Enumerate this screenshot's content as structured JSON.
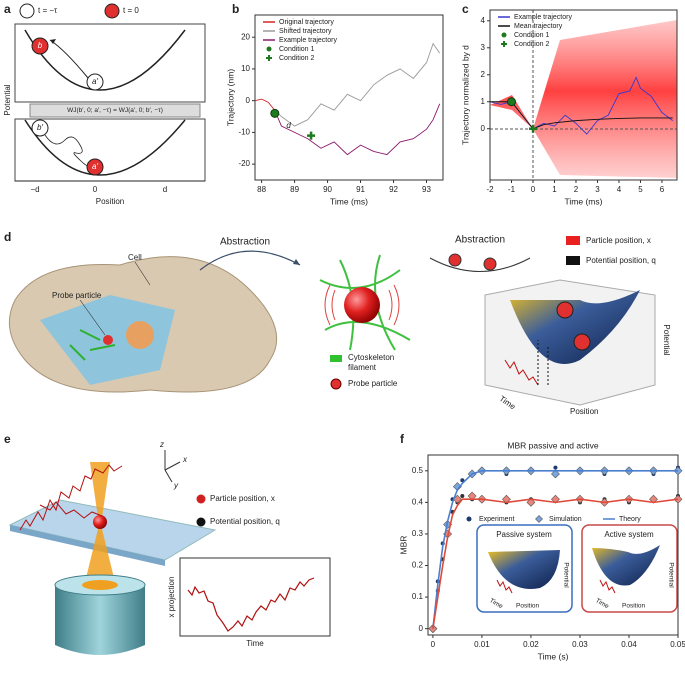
{
  "panels": [
    "a",
    "b",
    "c",
    "d",
    "e",
    "f"
  ],
  "panel_a": {
    "legend": [
      "t = −τ",
      "t = 0"
    ],
    "labels": [
      "b",
      "a′",
      "b′",
      "a′"
    ],
    "formula": "WJ(b′, 0; a′, −τ) = WJ(a′, 0; b′, −τ)",
    "ticks": [
      "−d",
      "0",
      "d"
    ],
    "xlabel": "Position",
    "ylabel": "Potential"
  },
  "panel_d": {
    "cell": "Cell",
    "probe_particle": "Probe particle",
    "abstraction": [
      "Abstraction",
      "Abstraction"
    ],
    "cytoskeleton": [
      "Cytoskeleton",
      "filament"
    ],
    "probe_particle_legend": "Probe particle",
    "legend": [
      "Particle position, x",
      "Potential position, q"
    ],
    "axes": [
      "Time",
      "Position",
      "Potential"
    ]
  },
  "panel_e": {
    "axes": [
      "z",
      "x",
      "y"
    ],
    "legend": [
      "Particle position, x",
      "Potential position, q"
    ],
    "inset_xlabel": "Time",
    "inset_ylabel": "x projection"
  },
  "panel_f": {
    "insets": [
      "Passive system",
      "Active system"
    ],
    "inset_axes": [
      "Time",
      "Position",
      "Potential"
    ]
  },
  "chart_data": [
    {
      "type": "line",
      "xlabel": "Time (ms)",
      "ylabel": "Trajectory (nm)",
      "xlim": [
        87.8,
        93.5
      ],
      "ylim": [
        -25,
        27
      ],
      "xticks": [
        88,
        89,
        90,
        91,
        92,
        93
      ],
      "yticks": [
        -20,
        -10,
        0,
        10,
        20
      ],
      "legend": "upper left",
      "annotation": "d",
      "series": [
        {
          "name": "Original trajectory",
          "color": "#d62728",
          "marker": "line",
          "x": [
            87.8,
            88.0,
            88.2,
            88.4
          ],
          "values": [
            0,
            0.5,
            -0.5,
            -3
          ]
        },
        {
          "name": "Shifted trajectory",
          "color": "#9a9a9a",
          "marker": "line",
          "x": [
            88.4,
            88.6,
            89.0,
            89.4,
            89.8,
            90.2,
            90.6,
            91.0,
            91.4,
            91.8,
            92.2,
            92.6,
            93.0,
            93.2,
            93.4
          ],
          "values": [
            -3,
            -5,
            -8,
            -6,
            -1,
            -3,
            2,
            0,
            5,
            8,
            10,
            7,
            12,
            18,
            15
          ]
        },
        {
          "name": "Example trajectory",
          "color": "#8b1a6b",
          "marker": "line",
          "x": [
            88.4,
            88.6,
            89.0,
            89.4,
            89.8,
            90.2,
            90.6,
            91.0,
            91.4,
            91.8,
            92.2,
            92.6,
            93.0,
            93.2,
            93.4
          ],
          "values": [
            -3,
            -8,
            -10,
            -12,
            -15,
            -13,
            -17,
            -14,
            -16,
            -17,
            -13,
            -12,
            -9,
            -6,
            -1
          ]
        },
        {
          "name": "Condition 1",
          "color": "#1e7a1e",
          "marker": "circle",
          "x": [
            88.4
          ],
          "values": [
            -4
          ]
        },
        {
          "name": "Condition 2",
          "color": "#1e7a1e",
          "marker": "plus",
          "x": [
            89.5
          ],
          "values": [
            -11
          ]
        }
      ]
    },
    {
      "type": "line",
      "xlabel": "Time (ms)",
      "ylabel": "Trajectory normalized by d",
      "xlim": [
        -2,
        6.7
      ],
      "ylim": [
        -1.9,
        4.4
      ],
      "xticks": [
        -2,
        -1,
        0,
        1,
        2,
        3,
        4,
        5,
        6
      ],
      "yticks": [
        0,
        1,
        2,
        3,
        4
      ],
      "legend": "upper left",
      "series": [
        {
          "name": "Example trajectory",
          "color": "#3838d0",
          "marker": "line",
          "x": [
            -2,
            -1.5,
            -1,
            -0.5,
            0,
            0.5,
            1,
            1.5,
            2,
            2.5,
            3,
            3.5,
            4,
            4.5,
            4.8,
            5,
            5.5,
            6,
            6.5
          ],
          "values": [
            1.0,
            0.9,
            1.0,
            0.5,
            0,
            0.2,
            0.1,
            0.5,
            0.2,
            -0.2,
            0.3,
            0.5,
            1.3,
            1.4,
            1.9,
            1.5,
            1.2,
            0.6,
            0.3
          ]
        },
        {
          "name": "Mean trajectory",
          "color": "#111111",
          "marker": "line",
          "x": [
            -2,
            -1,
            -0.5,
            0,
            0.5,
            1,
            2,
            3,
            4,
            5,
            6,
            6.5
          ],
          "values": [
            1,
            1,
            0.5,
            0,
            0.15,
            0.22,
            0.3,
            0.35,
            0.38,
            0.4,
            0.4,
            0.4
          ]
        },
        {
          "name": "Condition 1",
          "color": "#1e7a1e",
          "marker": "circle",
          "x": [
            -1
          ],
          "values": [
            1
          ]
        },
        {
          "name": "Condition 2",
          "color": "#1e7a1e",
          "marker": "plus",
          "x": [
            0
          ],
          "values": [
            0
          ]
        }
      ]
    },
    {
      "type": "line",
      "title": "MBR passive and active",
      "xlabel": "Time (s)",
      "ylabel": "MBR",
      "xlim": [
        -0.001,
        0.05
      ],
      "ylim": [
        -0.02,
        0.55
      ],
      "xticks": [
        0,
        0.01,
        0.02,
        0.03,
        0.04,
        0.05
      ],
      "yticks": [
        0,
        0.1,
        0.2,
        0.3,
        0.4,
        0.5
      ],
      "legend": "lower center",
      "x": [
        0,
        0.001,
        0.002,
        0.003,
        0.004,
        0.005,
        0.006,
        0.008,
        0.01,
        0.015,
        0.02,
        0.025,
        0.03,
        0.035,
        0.04,
        0.045,
        0.05
      ],
      "series": [
        {
          "name": "Experiment",
          "color": "#1f3a6e",
          "marker": "points",
          "values": [
            0.001,
            0.15,
            0.27,
            0.33,
            0.41,
            0.45,
            0.47,
            0.49,
            0.5,
            0.49,
            0.5,
            0.51,
            0.5,
            0.49,
            0.5,
            0.49,
            0.51
          ]
        },
        {
          "name": "Experiment",
          "color": "#333333",
          "marker": "points",
          "values": [
            0.005,
            0.12,
            0.22,
            0.3,
            0.37,
            0.4,
            0.42,
            0.41,
            0.41,
            0.4,
            0.41,
            0.41,
            0.4,
            0.41,
            0.4,
            0.41,
            0.42
          ]
        },
        {
          "name": "Simulation",
          "color": "#7aa6dd",
          "marker": "diamond",
          "values": [
            0,
            null,
            null,
            0.33,
            null,
            0.45,
            null,
            0.49,
            0.5,
            0.5,
            0.5,
            0.49,
            0.5,
            0.5,
            0.5,
            0.5,
            0.5
          ]
        },
        {
          "name": "Simulation",
          "color": "#e8857a",
          "marker": "diamond",
          "values": [
            0,
            null,
            null,
            0.3,
            null,
            0.41,
            null,
            0.42,
            0.41,
            0.41,
            0.4,
            0.41,
            0.41,
            0.4,
            0.41,
            0.41,
            0.41
          ]
        },
        {
          "name": "Theory",
          "color": "#4a7fd0",
          "marker": "line",
          "values": [
            0,
            0.14,
            0.26,
            0.34,
            0.4,
            0.44,
            0.46,
            0.49,
            0.5,
            0.5,
            0.5,
            0.5,
            0.5,
            0.5,
            0.5,
            0.5,
            0.5
          ]
        },
        {
          "name": "Theory",
          "color": "#e04a3a",
          "marker": "line",
          "values": [
            0,
            0.1,
            0.2,
            0.29,
            0.36,
            0.39,
            0.41,
            0.41,
            0.41,
            0.4,
            0.41,
            0.4,
            0.41,
            0.4,
            0.41,
            0.4,
            0.41
          ]
        }
      ]
    }
  ]
}
